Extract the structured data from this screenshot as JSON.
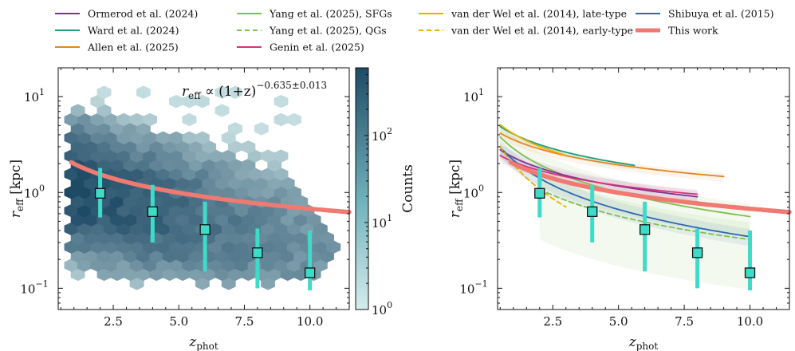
{
  "legend": {
    "entries": [
      {
        "label": "Ormerod et al. (2024)",
        "color": "#7b3294",
        "dash": false,
        "thick": false
      },
      {
        "label": "Ward et al. (2024)",
        "color": "#1a9e77",
        "dash": false,
        "thick": false
      },
      {
        "label": "Allen et al. (2025)",
        "color": "#e6851e",
        "dash": false,
        "thick": false
      },
      {
        "label": "Yang et al. (2025), SFGs",
        "color": "#7fbf4d",
        "dash": false,
        "thick": false
      },
      {
        "label": "Yang et al. (2025), QGs",
        "color": "#7fbf4d",
        "dash": true,
        "thick": false
      },
      {
        "label": "Genin et al. (2025)",
        "color": "#d6337a",
        "dash": false,
        "thick": false
      },
      {
        "label": "van der Wel et al. (2014), late-type",
        "color": "#e6b000",
        "dash": false,
        "thick": false
      },
      {
        "label": "van der Wel et al. (2014), early-type",
        "color": "#e6b000",
        "dash": true,
        "thick": false
      },
      {
        "label": "Shibuya et al. (2015)",
        "color": "#2f66b0",
        "dash": false,
        "thick": false
      },
      {
        "label": "This work",
        "color": "#f07a72",
        "dash": false,
        "thick": true
      }
    ]
  },
  "annotation": {
    "lhs": "r",
    "lhs_sub": "eff",
    "mid": " ∝ (1+z)",
    "exp": "−0.635±0.013"
  },
  "colorbar": {
    "label": "Counts",
    "ticks": [
      {
        "base": "10",
        "exp": "0",
        "v": 1
      },
      {
        "base": "10",
        "exp": "1",
        "v": 10
      },
      {
        "base": "10",
        "exp": "2",
        "v": 100
      }
    ],
    "max": 600,
    "color_low": "#d5ecec",
    "color_high": "#1f4a66"
  },
  "chart_data": [
    {
      "type": "scatter",
      "panel": "left",
      "title": "",
      "xlabel_main": "z",
      "xlabel_sub": "phot",
      "ylabel_main": "r",
      "ylabel_sub": "eff",
      "ylabel_unit": " [kpc]",
      "xlim": [
        0.4,
        11.5
      ],
      "ylim": [
        0.06,
        20
      ],
      "yscale": "log",
      "x_ticks": [
        "2.5",
        "5.0",
        "7.5",
        "10.0"
      ],
      "x_tick_values": [
        2.5,
        5.0,
        7.5,
        10.0
      ],
      "y_ticks": [
        {
          "base": "10",
          "exp": "−1",
          "v": 0.1
        },
        {
          "base": "10",
          "exp": "0",
          "v": 1
        },
        {
          "base": "10",
          "exp": "1",
          "v": 10
        }
      ],
      "fit": {
        "amplitude": 3.1,
        "slope": -0.635,
        "x_start": 0.9,
        "x_end": 11.5,
        "color": "#f07a72"
      },
      "binned": {
        "x": [
          2.0,
          4.0,
          6.0,
          8.0,
          10.0
        ],
        "y": [
          0.98,
          0.63,
          0.41,
          0.235,
          0.145
        ],
        "y_lo": [
          0.55,
          0.3,
          0.15,
          0.1,
          0.095
        ],
        "y_hi": [
          1.8,
          1.2,
          0.8,
          0.42,
          0.4
        ],
        "color": "#3ddbc8"
      }
    },
    {
      "type": "line",
      "panel": "right",
      "title": "",
      "xlabel_main": "z",
      "xlabel_sub": "phot",
      "ylabel_main": "r",
      "ylabel_sub": "eff",
      "ylabel_unit": " [kpc]",
      "xlim": [
        0.4,
        11.5
      ],
      "ylim": [
        0.06,
        20
      ],
      "yscale": "log",
      "x_ticks": [
        "2.5",
        "5.0",
        "7.5",
        "10.0"
      ],
      "x_tick_values": [
        2.5,
        5.0,
        7.5,
        10.0
      ],
      "y_ticks": [
        {
          "base": "10",
          "exp": "−1",
          "v": 0.1
        },
        {
          "base": "10",
          "exp": "0",
          "v": 1
        },
        {
          "base": "10",
          "exp": "1",
          "v": 10
        }
      ],
      "series": [
        {
          "name": "Ward et al. (2024)",
          "color": "#1a9e77",
          "dash": false,
          "x_start": 0.5,
          "x_end": 5.6,
          "amp": 6.3,
          "slope": -0.63,
          "band": [
            0.9,
            1.0
          ]
        },
        {
          "name": "Allen et al. (2025)",
          "color": "#e6851e",
          "dash": false,
          "x_start": 0.5,
          "x_end": 9.0,
          "amp": 5.2,
          "slope": -0.55,
          "band": [
            0.88,
            1.08
          ]
        },
        {
          "name": "van der Wel et al. (2014), late-type",
          "color": "#e6b000",
          "dash": false,
          "x_start": 0.5,
          "x_end": 3.0,
          "amp": 6.9,
          "slope": -0.75,
          "band": [
            0.95,
            1.05
          ]
        },
        {
          "name": "Yang et al. (2025), SFGs",
          "color": "#7fbf4d",
          "dash": false,
          "x_start": 0.5,
          "x_end": 10.0,
          "amp": 5.6,
          "slope": -0.96,
          "band": [
            0.6,
            1.35
          ]
        },
        {
          "name": "Ormerod et al. (2024)",
          "color": "#7b3294",
          "dash": false,
          "x_start": 0.5,
          "x_end": 8.0,
          "amp": 3.6,
          "slope": -0.63,
          "band": [
            0.82,
            1.15
          ]
        },
        {
          "name": "Genin et al. (2025)",
          "color": "#d6337a",
          "dash": false,
          "x_start": 0.5,
          "x_end": 8.0,
          "amp": 3.0,
          "slope": -0.52,
          "band": [
            0.85,
            1.12
          ]
        },
        {
          "name": "Shibuya et al. (2015)",
          "color": "#2f66b0",
          "dash": false,
          "x_start": 0.5,
          "x_end": 10.0,
          "amp": 4.6,
          "slope": -1.08,
          "band": [
            0.8,
            1.2
          ]
        },
        {
          "name": "Yang et al. (2025), QGs",
          "color": "#7fbf4d",
          "dash": true,
          "x_start": 2.0,
          "x_end": 10.0,
          "amp": 3.0,
          "slope": -0.93,
          "band": [
            0.3,
            1.5
          ]
        },
        {
          "name": "van der Wel et al. (2014), early-type",
          "color": "#e6b000",
          "dash": true,
          "x_start": 0.5,
          "x_end": 3.0,
          "amp": 5.5,
          "slope": -1.48,
          "band": [
            1,
            1
          ]
        },
        {
          "name": "This work",
          "color": "#f07a72",
          "dash": false,
          "thick": true,
          "x_start": 0.9,
          "x_end": 11.5,
          "amp": 3.1,
          "slope": -0.635,
          "band": [
            1,
            1
          ]
        }
      ],
      "binned": {
        "x": [
          2.0,
          4.0,
          6.0,
          8.0,
          10.0
        ],
        "y": [
          0.98,
          0.63,
          0.41,
          0.235,
          0.145
        ],
        "y_lo": [
          0.55,
          0.3,
          0.15,
          0.1,
          0.095
        ],
        "y_hi": [
          1.8,
          1.2,
          0.8,
          0.42,
          0.4
        ],
        "color": "#3ddbc8"
      }
    }
  ]
}
